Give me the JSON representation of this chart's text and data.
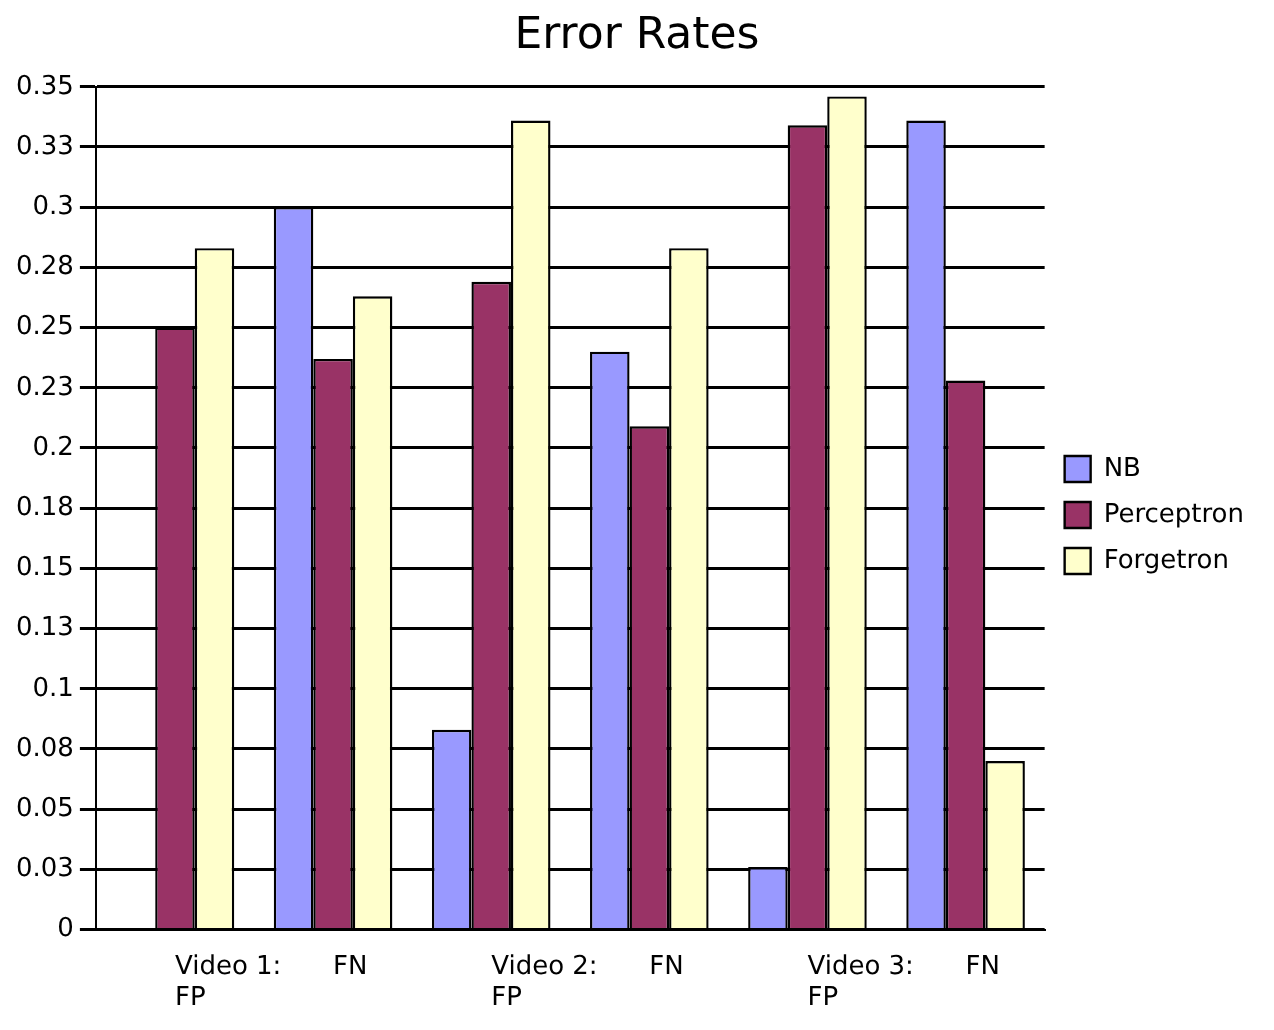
{
  "chart_data": {
    "type": "bar",
    "title": "Error Rates",
    "categories": [
      "Video 1: FP",
      "FN",
      "Video 2: FP",
      "FN",
      "Video 3: FP",
      "FN"
    ],
    "series": [
      {
        "name": "NB",
        "color": "#9999ff",
        "values": [
          0,
          0.3,
          0.083,
          0.24,
          0.026,
          0.336
        ]
      },
      {
        "name": "Perceptron",
        "color": "#993366",
        "values": [
          0.25,
          0.237,
          0.269,
          0.209,
          0.334,
          0.228
        ]
      },
      {
        "name": "Forgetron",
        "color": "#ffffcc",
        "values": [
          0.283,
          0.263,
          0.336,
          0.283,
          0.346,
          0.07
        ]
      }
    ],
    "ylim": [
      0,
      0.35
    ],
    "yticks": [
      0,
      {
        "value": 0.025,
        "label": "0.03"
      },
      {
        "value": 0.05,
        "label": "0.05"
      },
      {
        "value": 0.075,
        "label": "0.08"
      },
      0.1,
      {
        "value": 0.125,
        "label": "0.13"
      },
      0.15,
      {
        "value": 0.175,
        "label": "0.18"
      },
      0.2,
      {
        "value": 0.225,
        "label": "0.23"
      },
      0.25,
      {
        "value": 0.275,
        "label": "0.28"
      },
      0.3,
      {
        "value": 0.325,
        "label": "0.33"
      },
      0.35
    ],
    "grid": "y",
    "legend": "right"
  }
}
